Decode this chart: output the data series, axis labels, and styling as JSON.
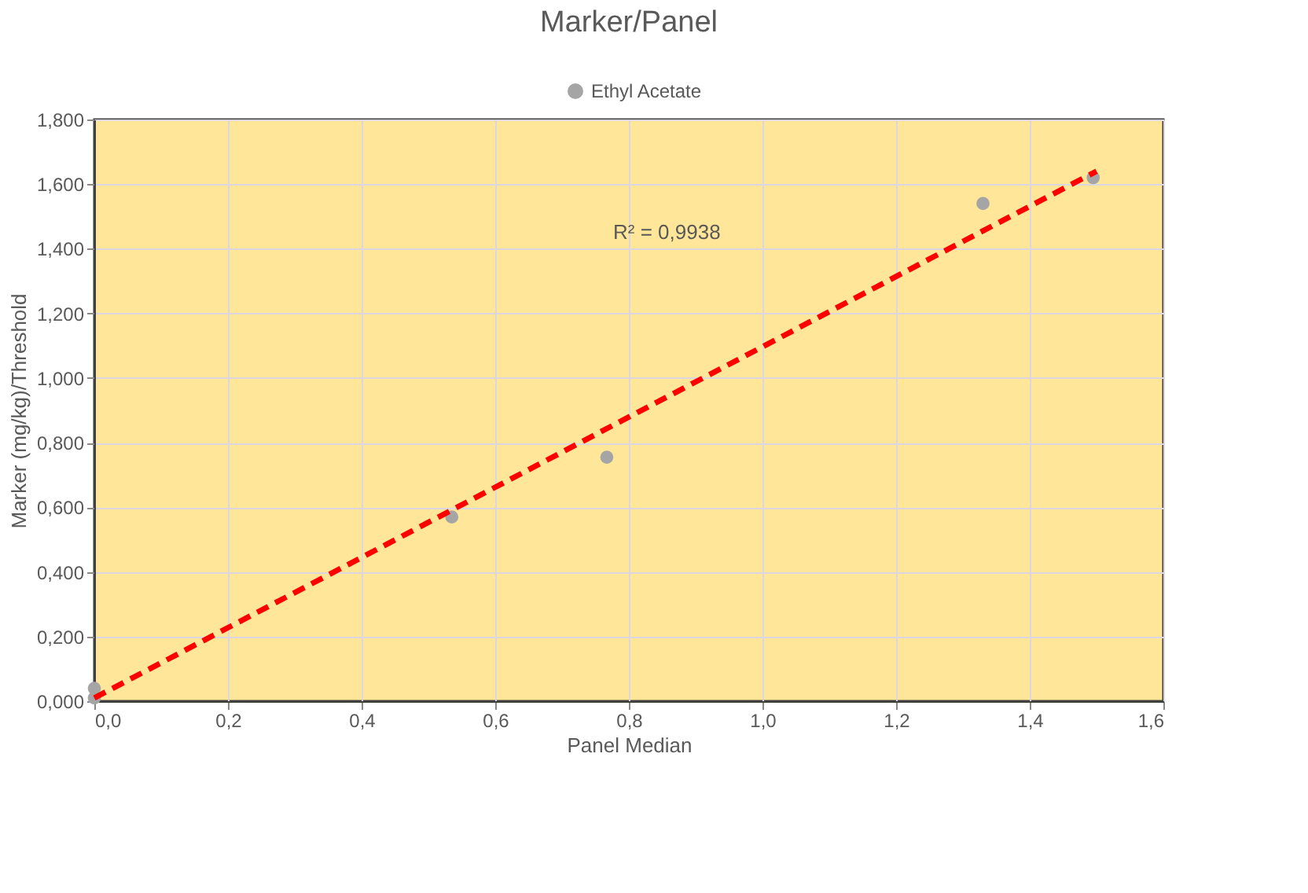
{
  "chart_data": {
    "type": "scatter",
    "title": "Marker/Panel",
    "xlabel": "Panel Median",
    "ylabel": "Marker (mg/kg)/Threshold",
    "series": [
      {
        "name": "Ethyl Acetate",
        "color": "#a5a5a5",
        "marker": "circle",
        "x": [
          0,
          0,
          0.535,
          0.767,
          1.33,
          1.495
        ],
        "values": [
          0.04,
          0.01,
          0.57,
          0.755,
          1.54,
          1.62
        ]
      },
      {
        "type": "line",
        "color": "#ff0000",
        "line_style": "dashed",
        "marker": "none",
        "x": [
          0,
          1.5
        ],
        "values": [
          0.01,
          1.64
        ]
      }
    ],
    "annotations": [
      "R² = 0,9938"
    ],
    "xlim": [
      0,
      1.6
    ],
    "xticks": [
      {
        "value": 0,
        "label": "0,0"
      },
      {
        "value": 0.2,
        "label": "0,2"
      },
      {
        "value": 0.4,
        "label": "0,4"
      },
      {
        "value": 0.6,
        "label": "0,6"
      },
      {
        "value": 0.8,
        "label": "0,8"
      },
      {
        "value": 1.0,
        "label": "1,0"
      },
      {
        "value": 1.2,
        "label": "1,2"
      },
      {
        "value": 1.4,
        "label": "1,4"
      },
      {
        "value": 1.6,
        "label": "1,6"
      }
    ],
    "ylim": [
      0,
      1.8
    ],
    "yticks": [
      {
        "value": 0,
        "label": "0,000"
      },
      {
        "value": 0.2,
        "label": "0,200"
      },
      {
        "value": 0.4,
        "label": "0,400"
      },
      {
        "value": 0.6,
        "label": "0,600"
      },
      {
        "value": 0.8,
        "label": "0,800"
      },
      {
        "value": 1.0,
        "label": "1,000"
      },
      {
        "value": 1.2,
        "label": "1,200"
      },
      {
        "value": 1.4,
        "label": "1,400"
      },
      {
        "value": 1.6,
        "label": "1,600"
      },
      {
        "value": 1.8,
        "label": "1,800"
      }
    ],
    "grid": true,
    "legend": "top"
  }
}
